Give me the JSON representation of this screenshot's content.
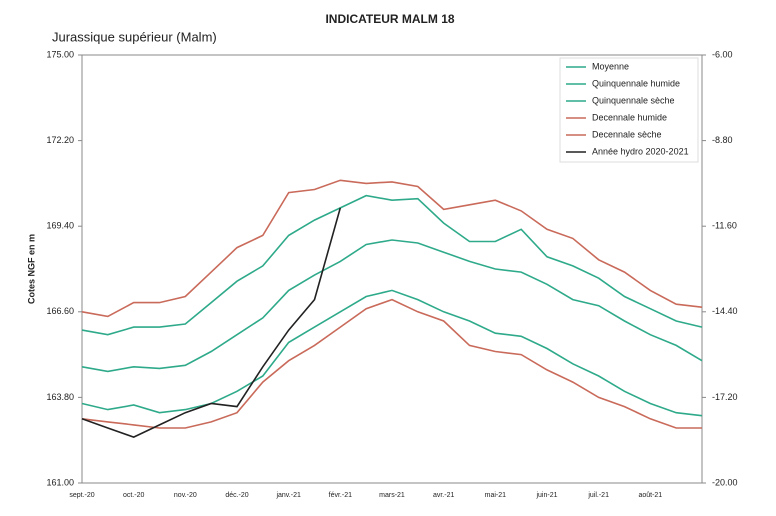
{
  "chart_data": {
    "type": "line",
    "title": "INDICATEUR MALM 18",
    "subtitle": "Jurassique supérieur (Malm)",
    "y_label": "Cotes NGF en m",
    "categories": [
      "sept.-20",
      null,
      "oct.-20",
      null,
      "nov.-20",
      null,
      "déc.-20",
      null,
      "janv.-21",
      null,
      "févr.-21",
      null,
      "mars-21",
      null,
      "avr.-21",
      null,
      "mai-21",
      null,
      "juin-21",
      null,
      "juil.-21",
      null,
      "août-21",
      null,
      null
    ],
    "ylim": [
      161,
      175
    ],
    "yticks": [
      {
        "value": 161,
        "label": "161.00"
      },
      {
        "value": 163.8,
        "label": "163.80"
      },
      {
        "value": 166.6,
        "label": "166.60"
      },
      {
        "value": 169.4,
        "label": "169.40"
      },
      {
        "value": 172.2,
        "label": "172.20"
      },
      {
        "value": 175,
        "label": "175.00"
      }
    ],
    "y2lim": [
      -20,
      -6
    ],
    "y2ticks": [
      {
        "value": -20,
        "label": "-20.00"
      },
      {
        "value": -17.2,
        "label": "-17.20"
      },
      {
        "value": -14.4,
        "label": "-14.40"
      },
      {
        "value": -11.6,
        "label": "-11.60"
      },
      {
        "value": -8.8,
        "label": "-8.80"
      },
      {
        "value": -6,
        "label": "-6.00"
      }
    ],
    "legend": "upper right",
    "series": [
      {
        "name": "Moyenne",
        "color": "#2eaa8a",
        "values": [
          164.8,
          164.65,
          164.8,
          164.75,
          164.85,
          165.3,
          165.85,
          166.4,
          167.3,
          167.8,
          168.25,
          168.8,
          168.95,
          168.85,
          168.55,
          168.25,
          168.0,
          167.9,
          167.5,
          167.0,
          166.8,
          166.3,
          165.85,
          165.5,
          165.0
        ]
      },
      {
        "name": "Quinquennale humide",
        "color": "#2eaa8a",
        "values": [
          166.0,
          165.85,
          166.1,
          166.1,
          166.2,
          166.9,
          167.6,
          168.1,
          169.1,
          169.6,
          170.0,
          170.4,
          170.25,
          170.3,
          169.5,
          168.9,
          168.9,
          169.3,
          168.4,
          168.1,
          167.7,
          167.1,
          166.7,
          166.3,
          166.1
        ]
      },
      {
        "name": "Quinquennale sèche",
        "color": "#2eaa8a",
        "values": [
          163.6,
          163.4,
          163.55,
          163.3,
          163.4,
          163.6,
          164.0,
          164.5,
          165.6,
          166.1,
          166.6,
          167.1,
          167.3,
          167.0,
          166.6,
          166.3,
          165.9,
          165.8,
          165.4,
          164.9,
          164.5,
          164.0,
          163.6,
          163.3,
          163.2
        ]
      },
      {
        "name": "Decennale humide",
        "color": "#c96a5a",
        "values": [
          166.6,
          166.45,
          166.9,
          166.9,
          167.1,
          167.9,
          168.7,
          169.1,
          170.5,
          170.6,
          170.9,
          170.8,
          170.85,
          170.7,
          169.95,
          170.1,
          170.25,
          169.9,
          169.3,
          169.0,
          168.3,
          167.9,
          167.3,
          166.85,
          166.75
        ]
      },
      {
        "name": "Decennale sèche",
        "color": "#c96a5a",
        "values": [
          163.1,
          163.0,
          162.9,
          162.8,
          162.8,
          163.0,
          163.3,
          164.3,
          165.0,
          165.5,
          166.1,
          166.7,
          167.0,
          166.6,
          166.3,
          165.5,
          165.3,
          165.2,
          164.7,
          164.3,
          163.8,
          163.5,
          163.1,
          162.8,
          162.8
        ]
      },
      {
        "name": "Année hydro 2020-2021",
        "color": "#222222",
        "values": [
          163.1,
          162.8,
          162.5,
          162.9,
          163.3,
          163.6,
          163.5,
          164.8,
          166.0,
          167.0,
          170.0,
          null,
          null,
          null,
          null,
          null,
          null,
          null,
          null,
          null,
          null,
          null,
          null,
          null,
          null
        ]
      }
    ]
  }
}
